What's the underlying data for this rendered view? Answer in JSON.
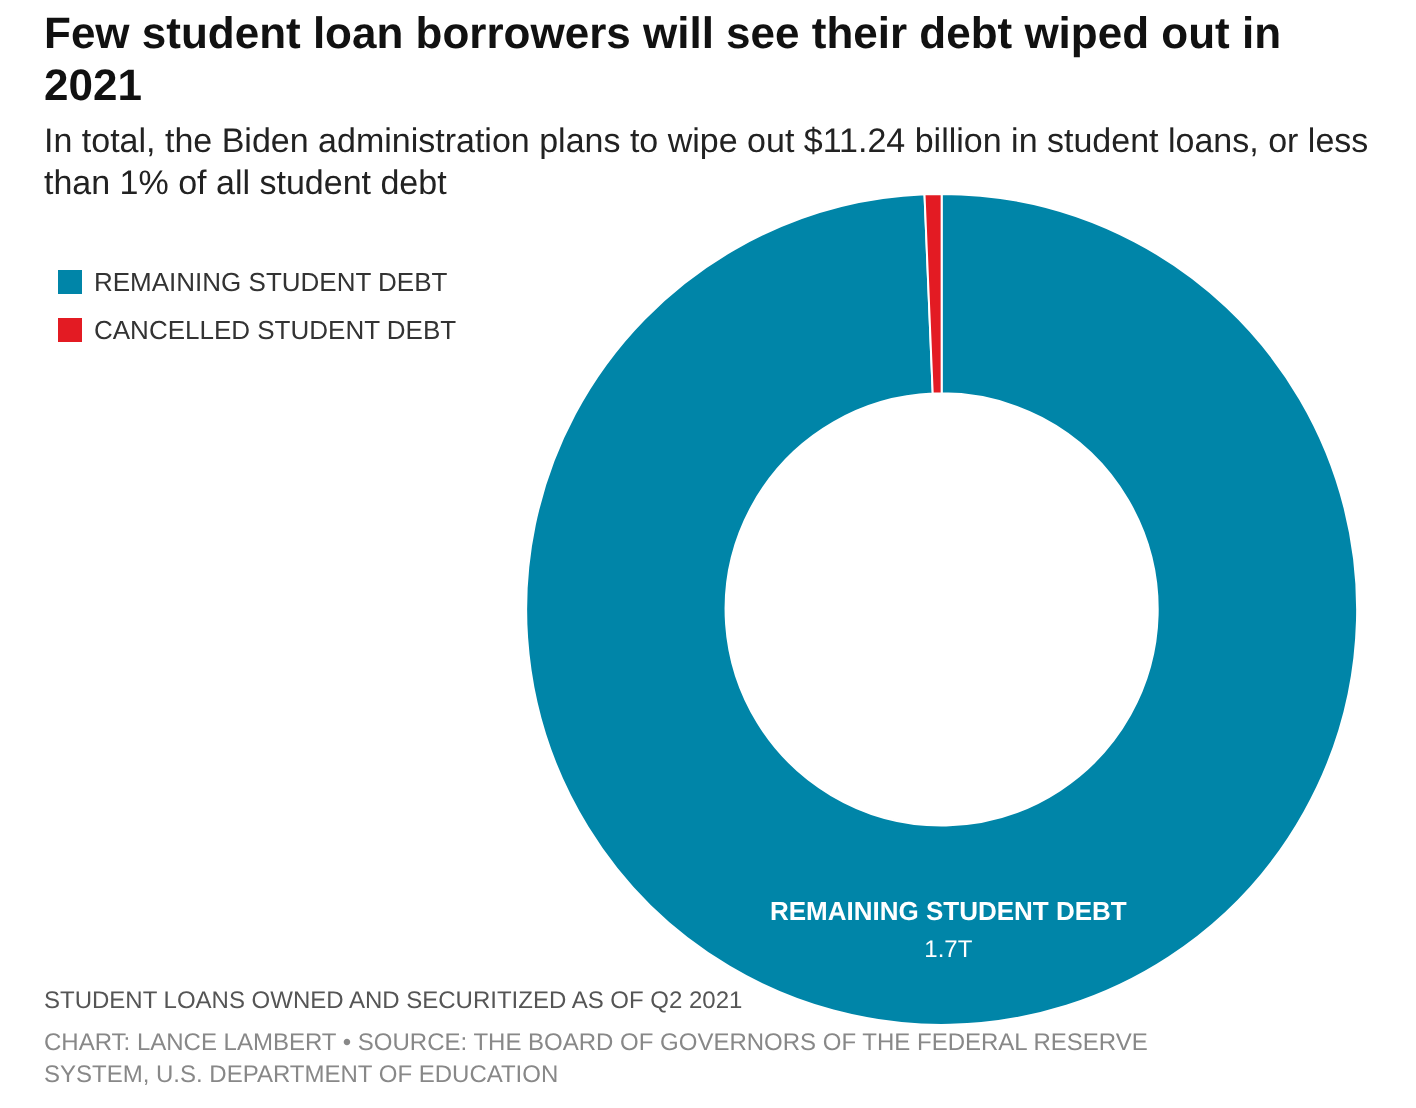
{
  "chart_data": {
    "type": "donut",
    "title": "Few student loan borrowers will see their debt wiped out in 2021",
    "subtitle": "In total, the Biden administration plans to wipe out $11.24 billion in student loans, or less than 1% of all student debt",
    "categories": [
      "REMAINING STUDENT DEBT",
      "CANCELLED STUDENT DEBT"
    ],
    "values": [
      1.7,
      0.01124
    ],
    "colors": [
      "#0085a8",
      "#e31b23"
    ],
    "value_labels": [
      "1.7T",
      null
    ],
    "legend": "top left",
    "annotations": [
      "STUDENT LOANS OWNED AND SECURITIZED AS OF Q2 2021",
      "CHART: LANCE LAMBERT • SOURCE: THE BOARD OF GOVERNORS OF THE FEDERAL RESERVE SYSTEM, U.S. DEPARTMENT OF EDUCATION"
    ]
  }
}
